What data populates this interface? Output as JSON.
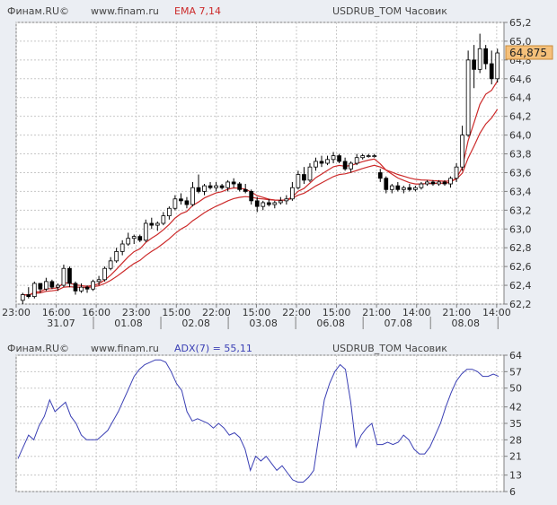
{
  "chart_data": [
    {
      "type": "candlestick",
      "header": {
        "source": "Финам.RU©",
        "site": "www.finam.ru",
        "indicator": "EMA 7,14",
        "instrument": "USDRUB_TOM Часовик"
      },
      "price_label": "64,875",
      "last_price": 64.875,
      "ylim": [
        62.2,
        65.2
      ],
      "yticks": [
        62.2,
        62.4,
        62.6,
        62.8,
        63.0,
        63.2,
        63.4,
        63.6,
        63.8,
        64.0,
        64.2,
        64.4,
        64.6,
        64.8,
        65.0,
        65.2
      ],
      "ytick_labels": [
        "62,2",
        "62,4",
        "62,6",
        "62,8",
        "63,0",
        "63,2",
        "63,4",
        "63,6",
        "63,8",
        "64,0",
        "64,2",
        "64,4",
        "64,6",
        "64,8",
        "65,0",
        "65,2"
      ],
      "time_labels": [
        "23:00",
        "16:00",
        "16:00",
        "23:00",
        "15:00",
        "22:00",
        "15:00",
        "22:00",
        "15:00",
        "21:00",
        "14:00",
        "21:00",
        "14:00"
      ],
      "date_labels": [
        "31.07",
        "01.08",
        "02.08",
        "03.08",
        "06.08",
        "07.08",
        "08.08"
      ],
      "candles": [
        [
          62.24,
          62.32,
          62.2,
          62.3
        ],
        [
          62.3,
          62.38,
          62.26,
          62.28
        ],
        [
          62.28,
          62.44,
          62.26,
          62.42
        ],
        [
          62.42,
          62.4,
          62.32,
          62.36
        ],
        [
          62.36,
          62.48,
          62.34,
          62.44
        ],
        [
          62.44,
          62.46,
          62.36,
          62.38
        ],
        [
          62.38,
          62.42,
          62.34,
          62.4
        ],
        [
          62.4,
          62.62,
          62.38,
          62.58
        ],
        [
          62.58,
          62.6,
          62.38,
          62.42
        ],
        [
          62.42,
          62.44,
          62.3,
          62.34
        ],
        [
          62.34,
          62.42,
          62.32,
          62.38
        ],
        [
          62.38,
          62.4,
          62.32,
          62.36
        ],
        [
          62.36,
          62.46,
          62.34,
          62.44
        ],
        [
          62.44,
          62.5,
          62.4,
          62.46
        ],
        [
          62.46,
          62.6,
          62.44,
          62.58
        ],
        [
          62.58,
          62.7,
          62.56,
          62.66
        ],
        [
          62.66,
          62.8,
          62.64,
          62.76
        ],
        [
          62.76,
          62.88,
          62.72,
          62.84
        ],
        [
          62.84,
          62.96,
          62.82,
          62.9
        ],
        [
          62.9,
          62.94,
          62.84,
          62.92
        ],
        [
          62.92,
          62.94,
          62.86,
          62.88
        ],
        [
          62.88,
          63.1,
          62.86,
          63.06
        ],
        [
          63.06,
          63.12,
          63.0,
          63.04
        ],
        [
          63.04,
          63.08,
          62.98,
          63.06
        ],
        [
          63.06,
          63.18,
          63.04,
          63.14
        ],
        [
          63.14,
          63.24,
          63.1,
          63.22
        ],
        [
          63.22,
          63.36,
          63.2,
          63.32
        ],
        [
          63.32,
          63.38,
          63.26,
          63.3
        ],
        [
          63.3,
          63.34,
          63.22,
          63.26
        ],
        [
          63.26,
          63.5,
          63.24,
          63.44
        ],
        [
          63.44,
          63.58,
          63.38,
          63.4
        ],
        [
          63.4,
          63.48,
          63.36,
          63.46
        ],
        [
          63.46,
          63.5,
          63.42,
          63.44
        ],
        [
          63.44,
          63.5,
          63.4,
          63.46
        ],
        [
          63.46,
          63.48,
          63.42,
          63.44
        ],
        [
          63.44,
          63.52,
          63.4,
          63.5
        ],
        [
          63.5,
          63.54,
          63.44,
          63.48
        ],
        [
          63.48,
          63.5,
          63.4,
          63.42
        ],
        [
          63.42,
          63.48,
          63.38,
          63.4
        ],
        [
          63.4,
          63.42,
          63.26,
          63.3
        ],
        [
          63.3,
          63.34,
          63.18,
          63.24
        ],
        [
          63.24,
          63.3,
          63.2,
          63.28
        ],
        [
          63.28,
          63.32,
          63.24,
          63.26
        ],
        [
          63.26,
          63.3,
          63.22,
          63.28
        ],
        [
          63.28,
          63.34,
          63.26,
          63.3
        ],
        [
          63.3,
          63.36,
          63.26,
          63.32
        ],
        [
          63.32,
          63.5,
          63.3,
          63.44
        ],
        [
          63.44,
          63.62,
          63.42,
          63.58
        ],
        [
          63.58,
          63.66,
          63.48,
          63.52
        ],
        [
          63.52,
          63.7,
          63.5,
          63.66
        ],
        [
          63.66,
          63.76,
          63.62,
          63.72
        ],
        [
          63.72,
          63.78,
          63.66,
          63.7
        ],
        [
          63.7,
          63.78,
          63.68,
          63.74
        ],
        [
          63.74,
          63.82,
          63.7,
          63.78
        ],
        [
          63.78,
          63.8,
          63.7,
          63.72
        ],
        [
          63.72,
          63.76,
          63.62,
          63.64
        ],
        [
          63.64,
          63.72,
          63.6,
          63.7
        ],
        [
          63.7,
          63.8,
          63.68,
          63.76
        ],
        [
          63.76,
          63.8,
          63.74,
          63.78
        ],
        [
          63.78,
          63.8,
          63.76,
          63.78
        ],
        [
          63.78,
          63.8,
          63.76,
          63.78
        ],
        [
          63.6,
          63.64,
          63.5,
          63.54
        ],
        [
          63.54,
          63.56,
          63.38,
          63.42
        ],
        [
          63.42,
          63.48,
          63.38,
          63.46
        ],
        [
          63.46,
          63.5,
          63.4,
          63.42
        ],
        [
          63.42,
          63.46,
          63.38,
          63.44
        ],
        [
          63.44,
          63.48,
          63.4,
          63.42
        ],
        [
          63.42,
          63.46,
          63.4,
          63.44
        ],
        [
          63.44,
          63.5,
          63.42,
          63.48
        ],
        [
          63.48,
          63.52,
          63.46,
          63.5
        ],
        [
          63.5,
          63.52,
          63.46,
          63.48
        ],
        [
          63.48,
          63.52,
          63.46,
          63.5
        ],
        [
          63.5,
          63.52,
          63.46,
          63.48
        ],
        [
          63.48,
          63.56,
          63.44,
          63.54
        ],
        [
          63.54,
          63.7,
          63.5,
          63.66
        ],
        [
          63.66,
          64.1,
          63.62,
          64.0
        ],
        [
          64.0,
          64.9,
          63.98,
          64.8
        ],
        [
          64.8,
          64.96,
          64.5,
          64.7
        ],
        [
          64.7,
          65.08,
          64.66,
          64.92
        ],
        [
          64.92,
          64.96,
          64.7,
          64.76
        ],
        [
          64.76,
          64.9,
          64.54,
          64.6
        ],
        [
          64.6,
          64.92,
          64.56,
          64.875
        ]
      ]
    },
    {
      "type": "line",
      "header": {
        "source": "Финам.RU©",
        "site": "www.finam.ru",
        "indicator": "ADX(7) = 55,11",
        "instrument": "USDRUB_TOM Часовик"
      },
      "ylim": [
        6,
        64
      ],
      "yticks": [
        6,
        13,
        21,
        28,
        35,
        42,
        50,
        57,
        64
      ],
      "values": [
        20,
        25,
        30,
        28,
        34,
        38,
        45,
        40,
        42,
        44,
        38,
        35,
        30,
        28,
        28,
        28,
        30,
        32,
        36,
        40,
        45,
        50,
        55,
        58,
        60,
        61,
        62,
        62,
        61,
        57,
        52,
        49,
        40,
        36,
        37,
        36,
        35,
        33,
        35,
        33,
        30,
        31,
        29,
        24,
        15,
        21,
        19,
        21,
        18,
        15,
        17,
        14,
        11,
        10,
        10,
        12,
        15,
        30,
        45,
        52,
        57,
        60,
        58,
        44,
        25,
        30,
        33,
        35,
        26,
        26,
        27,
        26,
        27,
        30,
        28,
        24,
        22,
        22,
        25,
        30,
        35,
        42,
        48,
        53,
        56,
        58,
        58,
        57,
        55,
        55,
        56,
        55
      ]
    }
  ],
  "colors": {
    "background": "#ebeef3",
    "plot": "#ffffff",
    "grid": "#c8c8c8",
    "axis": "#808080",
    "ema": "#cc2a2a",
    "adx": "#3a3fb4",
    "price_box": "#f5c07a",
    "header_text": "#444444",
    "ema_header": "#cc2a2a",
    "adx_header": "#3a3fb4"
  }
}
